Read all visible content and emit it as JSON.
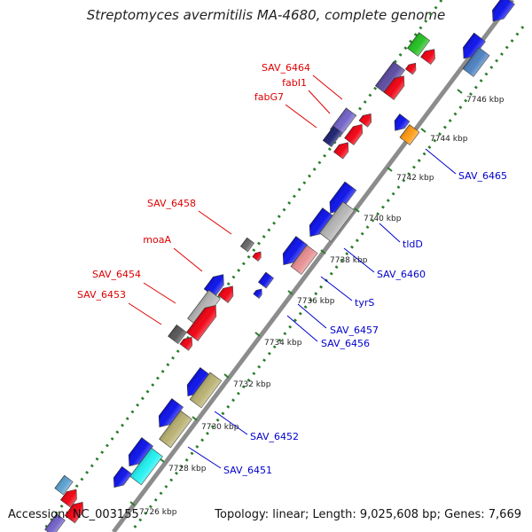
{
  "title": "Streptomyces avermitilis MA-4680, complete genome",
  "footer": {
    "accession": "Accession: NC_003155",
    "topology": "Topology: linear; Length: 9,025,608 bp; Genes: 7,669"
  },
  "ticks": [
    "7726 kbp",
    "7728 kbp",
    "7730 kbp",
    "7732 kbp",
    "7734 kbp",
    "7736 kbp",
    "7738 kbp",
    "7740 kbp",
    "7742 kbp",
    "7744 kbp",
    "7746 kbp"
  ],
  "labels_left": [
    "SAV_6464",
    "fabI1",
    "fabG7",
    "SAV_6458",
    "moaA",
    "SAV_6454",
    "SAV_6453"
  ],
  "labels_right": [
    "SAV_6465",
    "tldD",
    "SAV_6460",
    "tyrS",
    "SAV_6457",
    "SAV_6456",
    "SAV_6452",
    "SAV_6451"
  ],
  "colors": {
    "backbone": "#8c8c8c",
    "tick": "#2a7d2a",
    "red_label": "#dd0000",
    "blue_label": "#0000cc"
  }
}
